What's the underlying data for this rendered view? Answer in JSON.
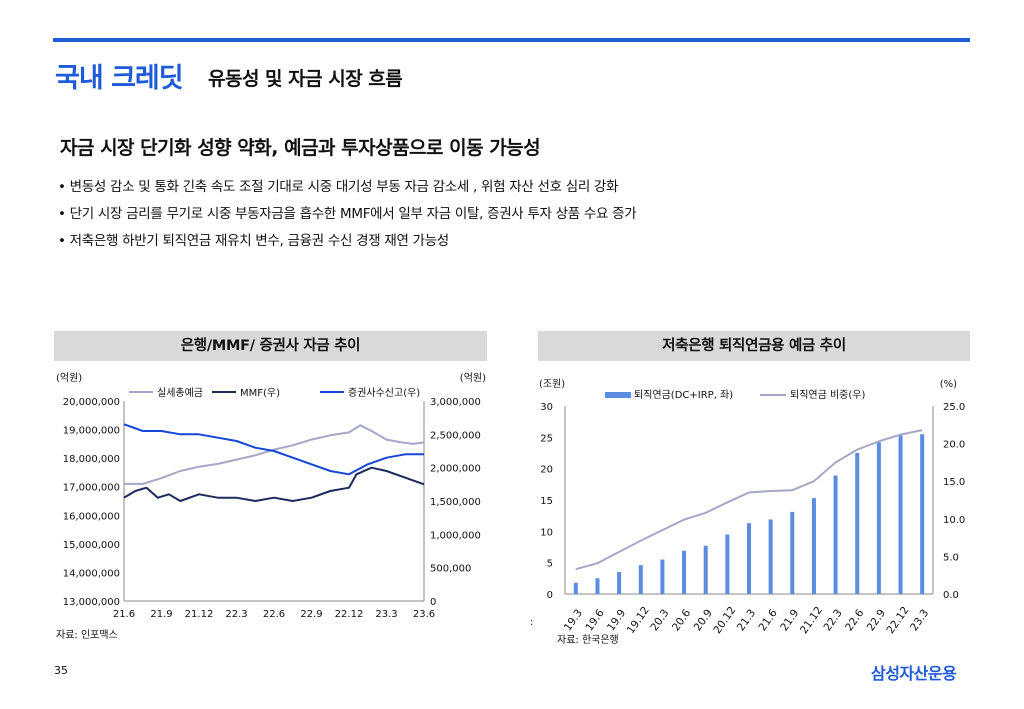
{
  "header": {
    "title_main": "국내 크레딧",
    "title_sub": "유동성 및 자금 시장 흐름"
  },
  "headline": "자금 시장 단기화 성향 약화, 예금과 투자상품으로 이동 가능성",
  "bullets": [
    "변동성 감소 및 통화 긴축 속도 조절 기대로 시중 대기성 부동 자금 감소세 , 위험 자산 선호 심리 강화",
    "단기 시장 금리를 무기로 시중 부동자금을 흡수한 MMF에서 일부 자금 이탈, 증권사 투자 상품 수요 증가",
    "저축은행 하반기 퇴직연금 재유치 변수, 금융권 수신 경쟁 재연 가능성"
  ],
  "footer": {
    "page": "35",
    "logo": "삼성자산운용",
    "colon": ":"
  },
  "colors": {
    "accent": "#1f5bd8",
    "bar": "#5b8ce0",
    "gray_line": "#a6a6c8",
    "navy": "#1c2a5c",
    "blue": "#1646d6"
  },
  "chart_data": [
    {
      "type": "line",
      "panel_title": "은행/MMF/ 증권사 자금 추이",
      "source": "자료: 인포맥스",
      "left_unit": "(억원)",
      "right_unit": "(억원)",
      "x_ticks": [
        "21.6",
        "21.9",
        "21.12",
        "22.3",
        "22.6",
        "22.9",
        "22.12",
        "23.3",
        "23.6"
      ],
      "y_left": {
        "min": 13000000,
        "max": 20000000,
        "ticks": [
          "13,000,000",
          "14,000,000",
          "15,000,000",
          "16,000,000",
          "17,000,000",
          "18,000,000",
          "19,000,000",
          "20,000,000"
        ]
      },
      "y_right": {
        "min": 0,
        "max": 3000000,
        "ticks": [
          "0",
          "500,000",
          "1,000,000",
          "1,500,000",
          "2,000,000",
          "2,500,000",
          "3,000,000"
        ]
      },
      "series": [
        {
          "name": "실세총예금",
          "axis": "left",
          "color": "#a6a6c8",
          "points": [
            [
              0,
              17100000
            ],
            [
              0.5,
              17100000
            ],
            [
              1,
              17300000
            ],
            [
              1.5,
              17550000
            ],
            [
              2,
              17700000
            ],
            [
              2.5,
              17800000
            ],
            [
              3,
              17950000
            ],
            [
              3.5,
              18100000
            ],
            [
              4,
              18300000
            ],
            [
              4.5,
              18450000
            ],
            [
              5,
              18650000
            ],
            [
              5.5,
              18800000
            ],
            [
              6,
              18900000
            ],
            [
              6.3,
              19150000
            ],
            [
              6.6,
              18950000
            ],
            [
              7,
              18650000
            ],
            [
              7.4,
              18550000
            ],
            [
              7.7,
              18500000
            ],
            [
              8,
              18550000
            ]
          ]
        },
        {
          "name": "MMF(우)",
          "axis": "right",
          "color": "#1c2a5c",
          "points": [
            [
              0,
              1550000
            ],
            [
              0.3,
              1650000
            ],
            [
              0.6,
              1700000
            ],
            [
              0.9,
              1550000
            ],
            [
              1.2,
              1600000
            ],
            [
              1.5,
              1500000
            ],
            [
              2,
              1600000
            ],
            [
              2.5,
              1550000
            ],
            [
              3,
              1550000
            ],
            [
              3.5,
              1500000
            ],
            [
              4,
              1550000
            ],
            [
              4.5,
              1500000
            ],
            [
              5,
              1550000
            ],
            [
              5.5,
              1650000
            ],
            [
              6,
              1700000
            ],
            [
              6.2,
              1900000
            ],
            [
              6.6,
              2000000
            ],
            [
              7,
              1950000
            ],
            [
              7.5,
              1850000
            ],
            [
              8,
              1750000
            ]
          ]
        },
        {
          "name": "증권사수신고(우)",
          "axis": "right",
          "color": "#1646d6",
          "points": [
            [
              0,
              2650000
            ],
            [
              0.5,
              2550000
            ],
            [
              1,
              2550000
            ],
            [
              1.5,
              2500000
            ],
            [
              2,
              2500000
            ],
            [
              2.5,
              2450000
            ],
            [
              3,
              2400000
            ],
            [
              3.5,
              2300000
            ],
            [
              4,
              2250000
            ],
            [
              4.5,
              2150000
            ],
            [
              5,
              2050000
            ],
            [
              5.5,
              1950000
            ],
            [
              6,
              1900000
            ],
            [
              6.5,
              2050000
            ],
            [
              7,
              2150000
            ],
            [
              7.5,
              2200000
            ],
            [
              8,
              2200000
            ]
          ]
        }
      ]
    },
    {
      "type": "bar",
      "panel_title": "저축은행 퇴직연금용 예금 추이",
      "source": "자료: 한국은행",
      "left_unit": "(조원)",
      "right_unit": "(%)",
      "categories": [
        "19.3",
        "19.6",
        "19.9",
        "19.12",
        "20.3",
        "20.6",
        "20.9",
        "20.12",
        "21.3",
        "21.6",
        "21.9",
        "21.12",
        "22.3",
        "22.6",
        "22.9",
        "22.12",
        "23.3"
      ],
      "y_left": {
        "min": 0,
        "max": 30,
        "ticks": [
          "0",
          "5",
          "10",
          "15",
          "20",
          "25",
          "30"
        ]
      },
      "y_right": {
        "min": 0,
        "max": 25,
        "ticks": [
          "0.0",
          "5.0",
          "10.0",
          "15.0",
          "20.0",
          "25.0"
        ]
      },
      "series": [
        {
          "name": "퇴직연금(DC+IRP, 좌)",
          "type": "bar",
          "axis": "left",
          "color": "#5b8ce0",
          "values": [
            1.8,
            2.5,
            3.5,
            4.6,
            5.5,
            6.9,
            7.7,
            9.5,
            11.3,
            11.9,
            13.1,
            15.3,
            18.9,
            22.5,
            24.2,
            25.5,
            25.5
          ]
        },
        {
          "name": "퇴직연금 비중(우)",
          "type": "line",
          "axis": "right",
          "color": "#a6a6c8",
          "values": [
            3.3,
            4.1,
            5.6,
            7.1,
            8.5,
            9.9,
            10.8,
            12.2,
            13.5,
            13.7,
            13.8,
            15.0,
            17.5,
            19.2,
            20.3,
            21.2,
            21.8
          ]
        }
      ]
    }
  ]
}
